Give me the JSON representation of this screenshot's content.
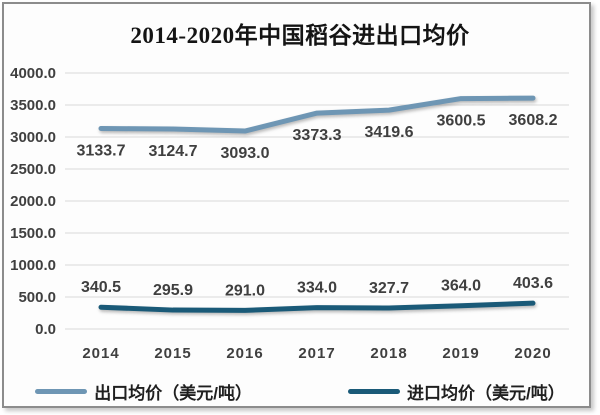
{
  "title": "2014-2020年中国稻谷进出口均价",
  "chart_data": {
    "type": "line",
    "title": "2014-2020年中国稻谷进出口均价",
    "categories": [
      "2014",
      "2015",
      "2016",
      "2017",
      "2018",
      "2019",
      "2020"
    ],
    "series": [
      {
        "id": "export-price",
        "name": "出口均价（美元/吨）",
        "values": [
          3133.7,
          3124.7,
          3093.0,
          3373.3,
          3419.6,
          3600.5,
          3608.2
        ],
        "labels": [
          "3133.7",
          "3124.7",
          "3093.0",
          "3373.3",
          "3419.6",
          "3600.5",
          "3608.2"
        ],
        "color": "#6e96b4",
        "label_position": "below"
      },
      {
        "id": "import-price",
        "name": "进口均价（美元/吨）",
        "values": [
          340.5,
          295.9,
          291.0,
          334.0,
          327.7,
          364.0,
          403.6
        ],
        "labels": [
          "340.5",
          "295.9",
          "291.0",
          "334.0",
          "327.7",
          "364.0",
          "403.6"
        ],
        "color": "#1a5a78",
        "label_position": "above"
      }
    ],
    "ylim": [
      0,
      4000
    ],
    "yticks": [
      0,
      500,
      1000,
      1500,
      2000,
      2500,
      3000,
      3500,
      4000
    ],
    "ytick_labels": [
      "0.0",
      "500.0",
      "1000.0",
      "1500.0",
      "2000.0",
      "2500.0",
      "3000.0",
      "3500.0",
      "4000.0"
    ],
    "grid": true,
    "legend_position": "bottom"
  },
  "colors": {
    "grid": "#d9d9d9",
    "axis_text": "#3f3f3f",
    "frame_border": "#8c8c8c",
    "background": "#ffffff"
  }
}
